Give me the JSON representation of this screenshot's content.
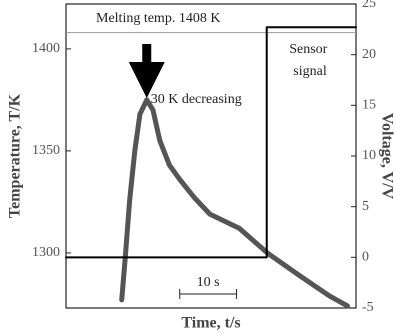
{
  "chart_data": {
    "type": "line",
    "xlabel": "Time, t/s",
    "ylabel": "Temperature, T/K",
    "y2label": "Voltage, V/V",
    "xlim": [
      0,
      51
    ],
    "ylim": [
      1273,
      1422
    ],
    "yticks": [
      1300,
      1350,
      1400
    ],
    "y2lim": [
      -5,
      25
    ],
    "y2ticks": [
      -5,
      0,
      5,
      10,
      15,
      20,
      25
    ],
    "series": [
      {
        "color": "#555555",
        "x": [
          9.8,
          10.4,
          11.2,
          12.1,
          13.0,
          14.2,
          15.3,
          16.5,
          18.2,
          20,
          22.6,
          25.3,
          30.5,
          35.4,
          41,
          46.3,
          49.5
        ],
        "values": [
          1277,
          1297,
          1326,
          1350,
          1368,
          1375,
          1370,
          1355,
          1343,
          1336,
          1327,
          1319,
          1312,
          1300,
          1289,
          1279,
          1274
        ]
      },
      {
        "name": "Sensor signal",
        "color": "#000000",
        "axis": "y2",
        "x": [
          0,
          35.3,
          35.3,
          51
        ],
        "values": [
          0,
          0,
          22.7,
          22.7
        ]
      }
    ],
    "hline": {
      "value": 1408,
      "label": "Melting temp. 1408 K"
    },
    "peak_annotation": {
      "x": 14.2,
      "label": "30 K decreasing"
    },
    "scale_bar": {
      "x": [
        20,
        30
      ],
      "label": "10 s"
    }
  }
}
